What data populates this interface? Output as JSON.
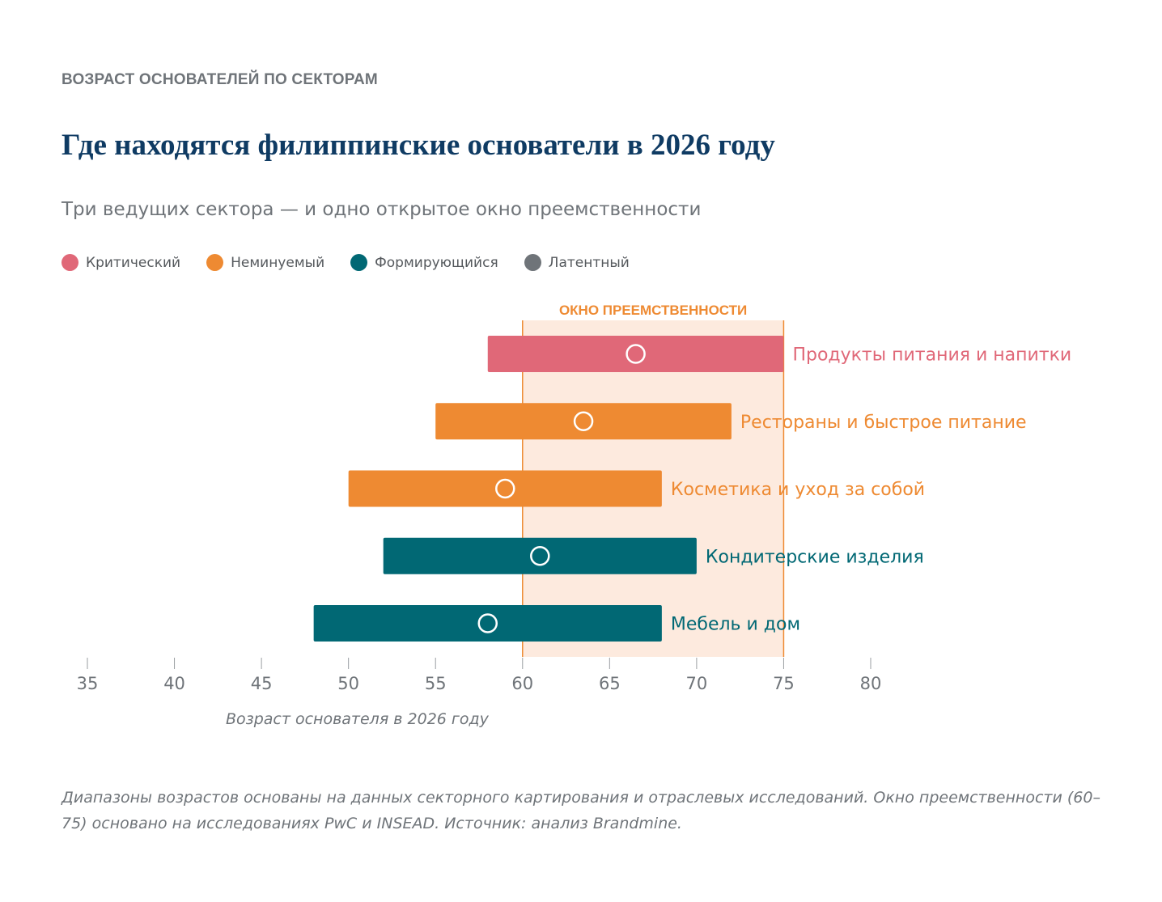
{
  "header": {
    "eyebrow": "ВОЗРАСТ ОСНОВАТЕЛЕЙ ПО СЕКТОРАМ",
    "title": "Где находятся филиппинские основатели в 2026 году",
    "subtitle": "Три ведущих сектора — и одно открытое окно преемственности"
  },
  "legend": [
    {
      "label": "Критический",
      "color": "#e06878"
    },
    {
      "label": "Неминуемый",
      "color": "#ee8a32"
    },
    {
      "label": "Формирующийся",
      "color": "#016874"
    },
    {
      "label": "Латентный",
      "color": "#6f7479"
    }
  ],
  "chart_data": {
    "type": "range-bar",
    "xlabel": "Возраст основателя в 2026 году",
    "xlim": [
      35,
      80
    ],
    "xticks": [
      35,
      40,
      45,
      50,
      55,
      60,
      65,
      70,
      75,
      80
    ],
    "window": {
      "label": "ОКНО ПРЕЕМСТВЕННОСТИ",
      "from": 60,
      "to": 75,
      "color": "#ee8a32",
      "fill": "#fdeade"
    },
    "series": [
      {
        "name": "Продукты питания и напитки",
        "category": "Критический",
        "min": 58,
        "max": 75,
        "median": 66.5,
        "color": "#e06878"
      },
      {
        "name": "Рестораны и быстрое питание",
        "category": "Неминуемый",
        "min": 55,
        "max": 72,
        "median": 63.5,
        "color": "#ee8a32"
      },
      {
        "name": "Косметика и уход за собой",
        "category": "Неминуемый",
        "min": 50,
        "max": 68,
        "median": 59,
        "color": "#ee8a32"
      },
      {
        "name": "Кондитерские изделия",
        "category": "Формирующийся",
        "min": 52,
        "max": 70,
        "median": 61,
        "color": "#016874"
      },
      {
        "name": "Мебель и дом",
        "category": "Формирующийся",
        "min": 48,
        "max": 68,
        "median": 58,
        "color": "#016874"
      }
    ]
  },
  "footnote": "Диапазоны возрастов основаны на данных секторного картирования и отраслевых исследований. Окно преемственности (60–75) основано на исследованиях PwC и INSEAD. Источник: анализ Brandmine."
}
